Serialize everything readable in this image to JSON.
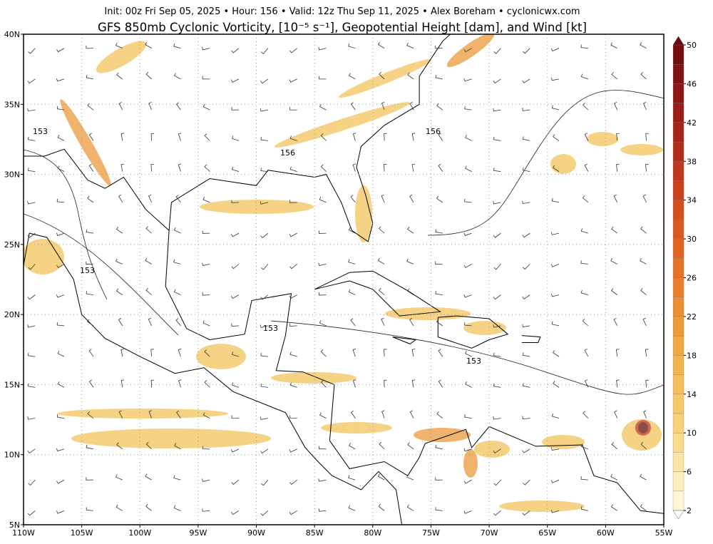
{
  "header": {
    "info": "Init: 00z Fri Sep 05, 2025  •  Hour: 156  •  Valid: 12z Thu Sep 11, 2025  •  Alex Boreham  •  cyclonicwx.com",
    "title": "GFS 850mb Cyclonic Vorticity, [10⁻⁵ s⁻¹], Geopotential Height [dam], and Wind [kt]"
  },
  "map": {
    "lon_labels": [
      "110W",
      "105W",
      "100W",
      "95W",
      "90W",
      "85W",
      "80W",
      "75W",
      "70W",
      "65W",
      "60W",
      "55W"
    ],
    "lat_labels": [
      "5N",
      "10N",
      "15N",
      "20N",
      "25N",
      "30N",
      "35N",
      "40N"
    ],
    "contour_labels": [
      "153",
      "156",
      "156",
      "153",
      "153",
      "153"
    ]
  },
  "colorbar": {
    "range": [
      2,
      50
    ],
    "ticks": [
      2,
      6,
      10,
      14,
      18,
      22,
      26,
      30,
      34,
      38,
      42,
      46,
      50
    ]
  }
}
